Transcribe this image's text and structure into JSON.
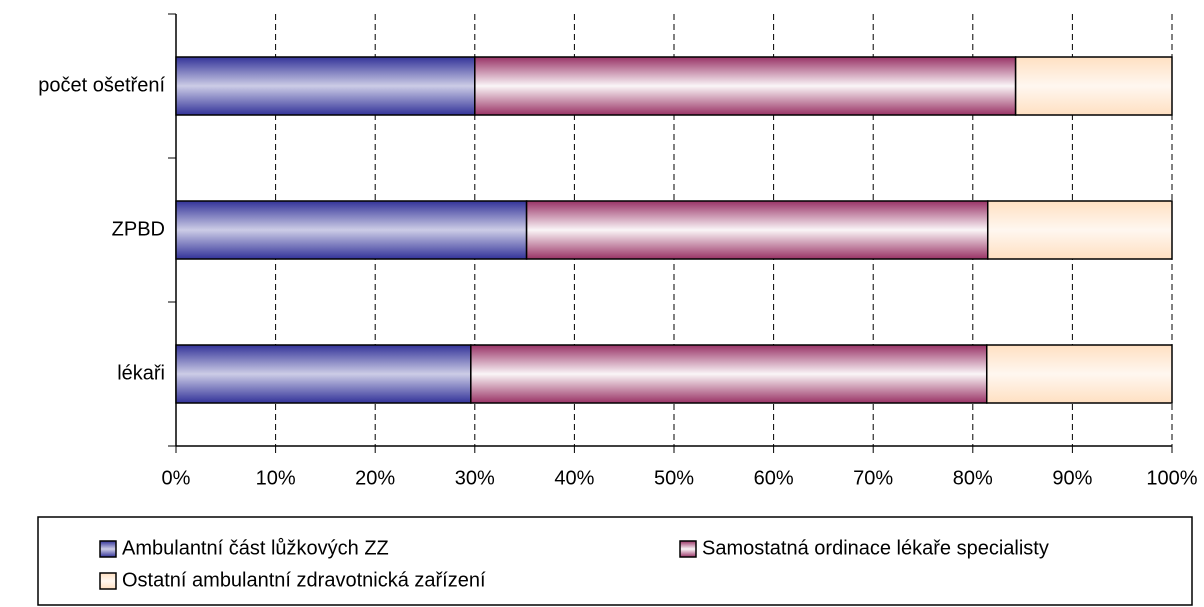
{
  "chart_data": {
    "type": "stacked_barh",
    "categories": [
      "počet ošetření",
      "ZPBD",
      "lékaři"
    ],
    "series": [
      {
        "name": "Ambulantní část lůžkových ZZ",
        "color": "#333399",
        "values": [
          30,
          35.2,
          29.6
        ]
      },
      {
        "name": "Samostatná ordinace lékaře specialisty",
        "color": "#993366",
        "values": [
          54.3,
          46.3,
          51.8
        ]
      },
      {
        "name": "Ostatní ambulantní zdravotnická zařízení",
        "color": "#ffcc99",
        "values": [
          15.7,
          18.5,
          18.6
        ]
      }
    ],
    "xlim": [
      0,
      100
    ],
    "xticks": [
      {
        "value": 0,
        "label": "0%"
      },
      {
        "value": 10,
        "label": "10%"
      },
      {
        "value": 20,
        "label": "20%"
      },
      {
        "value": 30,
        "label": "30%"
      },
      {
        "value": 40,
        "label": "40%"
      },
      {
        "value": 50,
        "label": "50%"
      },
      {
        "value": 60,
        "label": "60%"
      },
      {
        "value": 70,
        "label": "70%"
      },
      {
        "value": 80,
        "label": "80%"
      },
      {
        "value": 90,
        "label": "90%"
      },
      {
        "value": 100,
        "label": "100%"
      }
    ],
    "grid": true,
    "legend": "bottom"
  }
}
